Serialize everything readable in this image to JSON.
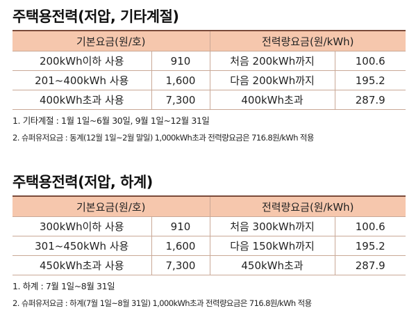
{
  "sections": [
    {
      "title": "주택용전력(저압, 기타계절)",
      "headers": {
        "basic": "기본요금(원/호)",
        "energy": "전력량요금(원/kWh)"
      },
      "rows": [
        {
          "basic_label": "200kWh이하 사용",
          "basic_value": "910",
          "energy_label": "처음 200kWh까지",
          "energy_value": "100.6"
        },
        {
          "basic_label": "201~400kWh 사용",
          "basic_value": "1,600",
          "energy_label": "다음 200kWh까지",
          "energy_value": "195.2"
        },
        {
          "basic_label": "400kWh초과 사용",
          "basic_value": "7,300",
          "energy_label": "400kWh초과",
          "energy_value": "287.9"
        }
      ],
      "notes": [
        "1. 기타계절 : 1월 1일~6월 30일, 9월 1일~12월 31일",
        "2. 슈퍼유저요금 : 동계(12월 1일~2월 말일) 1,000kWh초과 전력량요금은 716.8원/kWh 적용"
      ]
    },
    {
      "title": "주택용전력(저압, 하계)",
      "headers": {
        "basic": "기본요금(원/호)",
        "energy": "전력량요금(원/kWh)"
      },
      "rows": [
        {
          "basic_label": "300kWh이하 사용",
          "basic_value": "910",
          "energy_label": "처음 300kWh까지",
          "energy_value": "100.6"
        },
        {
          "basic_label": "301~450kWh 사용",
          "basic_value": "1,600",
          "energy_label": "다음 150kWh까지",
          "energy_value": "195.2"
        },
        {
          "basic_label": "450kWh초과 사용",
          "basic_value": "7,300",
          "energy_label": "450kWh초과",
          "energy_value": "287.9"
        }
      ],
      "notes": [
        "1. 하계 : 7월 1일~8월 31일",
        "2. 슈퍼유저요금 : 하계(7월 1일~8월 31일) 1,000kWh초과 전력량요금은 716.8원/kWh 적용"
      ]
    }
  ]
}
